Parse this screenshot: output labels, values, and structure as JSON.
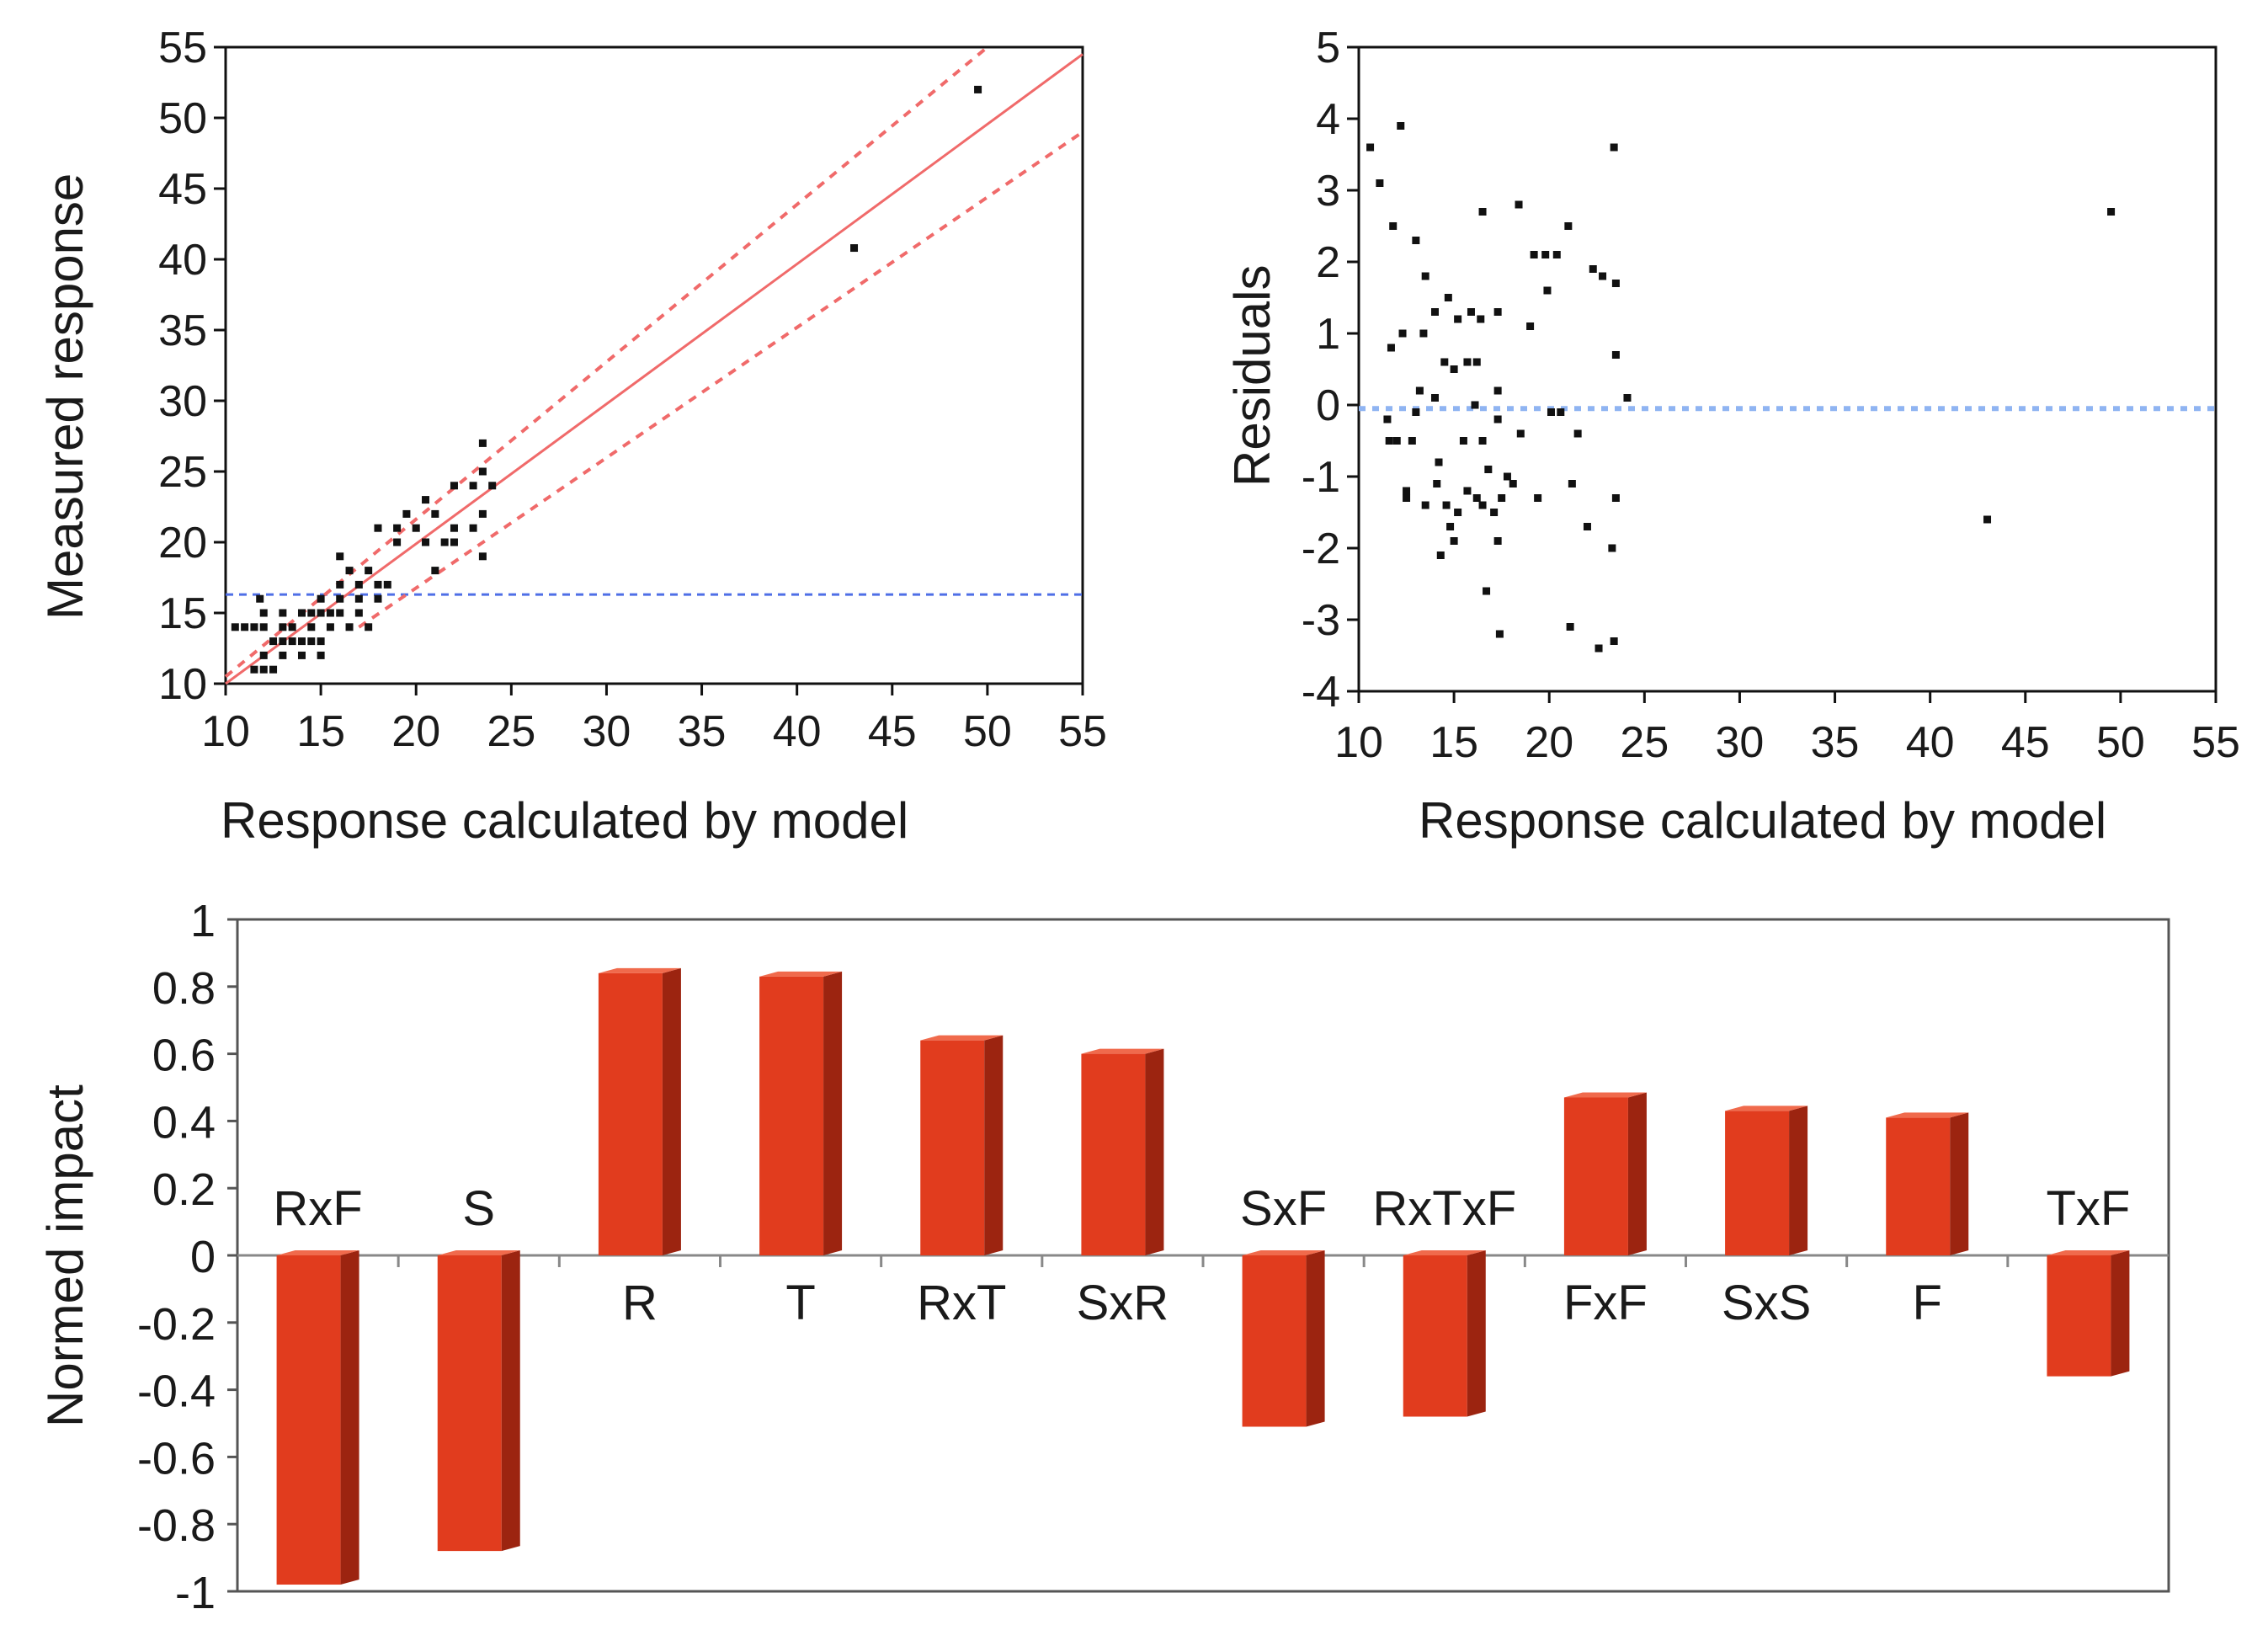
{
  "chart_data": [
    {
      "type": "scatter",
      "xlabel": "Response calculated by model",
      "ylabel": "Measured response",
      "xlim": [
        10,
        55
      ],
      "ylim": [
        10,
        55
      ],
      "xticks": [
        "10",
        "15",
        "20",
        "25",
        "30",
        "35",
        "40",
        "45",
        "50",
        "55"
      ],
      "yticks": [
        "10",
        "15",
        "20",
        "25",
        "30",
        "35",
        "40",
        "45",
        "50",
        "55"
      ],
      "mean_line": 16.3,
      "fit_line": {
        "from": [
          10,
          10
        ],
        "to": [
          55,
          54.5
        ]
      },
      "confidence_upper": {
        "from": [
          10,
          10.5
        ],
        "to": [
          50,
          55
        ]
      },
      "confidence_lower": {
        "from": [
          17,
          14
        ],
        "to": [
          55,
          49
        ]
      },
      "points": [
        [
          10.5,
          14
        ],
        [
          11,
          14
        ],
        [
          11.5,
          14
        ],
        [
          12,
          14
        ],
        [
          11.5,
          11
        ],
        [
          12,
          11
        ],
        [
          12.5,
          11
        ],
        [
          12,
          12
        ],
        [
          13,
          12
        ],
        [
          12.5,
          13
        ],
        [
          13,
          13
        ],
        [
          13.5,
          13
        ],
        [
          14,
          13
        ],
        [
          14.5,
          13
        ],
        [
          12,
          15
        ],
        [
          13,
          15
        ],
        [
          14,
          15
        ],
        [
          15,
          15
        ],
        [
          14,
          12
        ],
        [
          15,
          12
        ],
        [
          13.5,
          14
        ],
        [
          14.5,
          14
        ],
        [
          15.5,
          14
        ],
        [
          16.5,
          14
        ],
        [
          17.5,
          14
        ],
        [
          15,
          16
        ],
        [
          16,
          16
        ],
        [
          17,
          16
        ],
        [
          14.5,
          15
        ],
        [
          15.5,
          15
        ],
        [
          16,
          17
        ],
        [
          17,
          17
        ],
        [
          18,
          17
        ],
        [
          16.5,
          18
        ],
        [
          17.5,
          18
        ],
        [
          16,
          19
        ],
        [
          18,
          16
        ],
        [
          19,
          21
        ],
        [
          20,
          21
        ],
        [
          21,
          22
        ],
        [
          22,
          24
        ],
        [
          23,
          24
        ],
        [
          23.5,
          25
        ],
        [
          23.5,
          27
        ],
        [
          24,
          24
        ],
        [
          23.5,
          22
        ],
        [
          23,
          21
        ],
        [
          22,
          21
        ],
        [
          21.5,
          20
        ],
        [
          20.5,
          20
        ],
        [
          19,
          20
        ],
        [
          18,
          21
        ],
        [
          19.5,
          22
        ],
        [
          20.5,
          23
        ],
        [
          21,
          18
        ],
        [
          23.5,
          19
        ],
        [
          22,
          20
        ],
        [
          18.5,
          17
        ],
        [
          17,
          15
        ],
        [
          16,
          15
        ],
        [
          13,
          14
        ],
        [
          15,
          13
        ],
        [
          11.8,
          16
        ],
        [
          43,
          40.8
        ],
        [
          49.5,
          52
        ]
      ]
    },
    {
      "type": "scatter",
      "xlabel": "Response calculated by model",
      "ylabel": "Residuals",
      "xlim": [
        10,
        55
      ],
      "ylim": [
        -4,
        5
      ],
      "xticks": [
        "10",
        "15",
        "20",
        "25",
        "30",
        "35",
        "40",
        "45",
        "50",
        "55"
      ],
      "yticks": [
        "-4",
        "-3",
        "-2",
        "-1",
        "0",
        "1",
        "2",
        "3",
        "4",
        "5"
      ],
      "zero_line": -0.05,
      "points": [
        [
          10.6,
          3.6
        ],
        [
          11.1,
          3.1
        ],
        [
          12.2,
          3.9
        ],
        [
          11.8,
          2.5
        ],
        [
          13,
          2.3
        ],
        [
          13.5,
          1.8
        ],
        [
          11.7,
          0.8
        ],
        [
          12.3,
          1
        ],
        [
          13.4,
          1
        ],
        [
          14,
          1.3
        ],
        [
          13.2,
          0.2
        ],
        [
          13,
          -0.1
        ],
        [
          11.5,
          -0.2
        ],
        [
          12,
          -0.5
        ],
        [
          11.6,
          -0.5
        ],
        [
          12.8,
          -0.5
        ],
        [
          12.5,
          -1.2
        ],
        [
          12.5,
          -1.3
        ],
        [
          13.5,
          -1.4
        ],
        [
          14.1,
          -1.1
        ],
        [
          14.3,
          -2.1
        ],
        [
          15,
          -1.9
        ],
        [
          14.8,
          -1.7
        ],
        [
          15.2,
          -1.5
        ],
        [
          14.6,
          -1.4
        ],
        [
          14.2,
          -0.8
        ],
        [
          14,
          0.1
        ],
        [
          14.5,
          0.6
        ],
        [
          15,
          0.5
        ],
        [
          14.7,
          1.5
        ],
        [
          15.2,
          1.2
        ],
        [
          15.7,
          0.6
        ],
        [
          16.2,
          0.6
        ],
        [
          15.9,
          1.3
        ],
        [
          16.4,
          1.2
        ],
        [
          17.3,
          1.3
        ],
        [
          16.5,
          2.7
        ],
        [
          18.4,
          2.8
        ],
        [
          19.2,
          2.1
        ],
        [
          19.8,
          2.1
        ],
        [
          20.4,
          2.1
        ],
        [
          19.9,
          1.6
        ],
        [
          19,
          1.1
        ],
        [
          21,
          2.5
        ],
        [
          22.3,
          1.9
        ],
        [
          22.8,
          1.8
        ],
        [
          23.5,
          1.7
        ],
        [
          23.4,
          3.6
        ],
        [
          23.5,
          0.7
        ],
        [
          24.1,
          0.1
        ],
        [
          20.6,
          -0.1
        ],
        [
          21.5,
          -0.4
        ],
        [
          21.2,
          -1.1
        ],
        [
          22,
          -1.7
        ],
        [
          23.3,
          -2
        ],
        [
          23.5,
          -1.3
        ],
        [
          21.1,
          -3.1
        ],
        [
          22.6,
          -3.4
        ],
        [
          23.4,
          -3.3
        ],
        [
          17.4,
          -3.2
        ],
        [
          16.7,
          -2.6
        ],
        [
          17.3,
          -1.9
        ],
        [
          17.1,
          -1.5
        ],
        [
          17.5,
          -1.3
        ],
        [
          18.1,
          -1.1
        ],
        [
          17.8,
          -1
        ],
        [
          18.5,
          -0.4
        ],
        [
          16.5,
          -0.5
        ],
        [
          16.2,
          -1.3
        ],
        [
          16.5,
          -1.4
        ],
        [
          17.3,
          -0.2
        ],
        [
          17.3,
          0.2
        ],
        [
          16.1,
          0
        ],
        [
          15.5,
          -0.5
        ],
        [
          15.7,
          -1.2
        ],
        [
          19.4,
          -1.3
        ],
        [
          20.1,
          -0.1
        ],
        [
          43,
          -1.6
        ],
        [
          49.5,
          2.7
        ],
        [
          16.8,
          -0.9
        ]
      ]
    },
    {
      "type": "bar",
      "ylabel": "Normed impact",
      "ylim": [
        -1,
        1
      ],
      "yticks": [
        "1",
        "0.8",
        "0.6",
        "0.4",
        "0.2",
        "0",
        "-0.2",
        "-0.4",
        "-0.6",
        "-0.8",
        "-1"
      ],
      "categories": [
        "RxF",
        "S",
        "R",
        "T",
        "RxT",
        "SxR",
        "SxF",
        "RxTxF",
        "FxF",
        "SxS",
        "F",
        "TxF"
      ],
      "values": [
        -0.98,
        -0.88,
        0.84,
        0.83,
        0.64,
        0.6,
        -0.51,
        -0.48,
        0.47,
        0.43,
        0.41,
        -0.36
      ],
      "bar_color": "#e13c1e",
      "bar_side_color": "#9c2410",
      "bar_top_color": "#f06a4c"
    }
  ]
}
